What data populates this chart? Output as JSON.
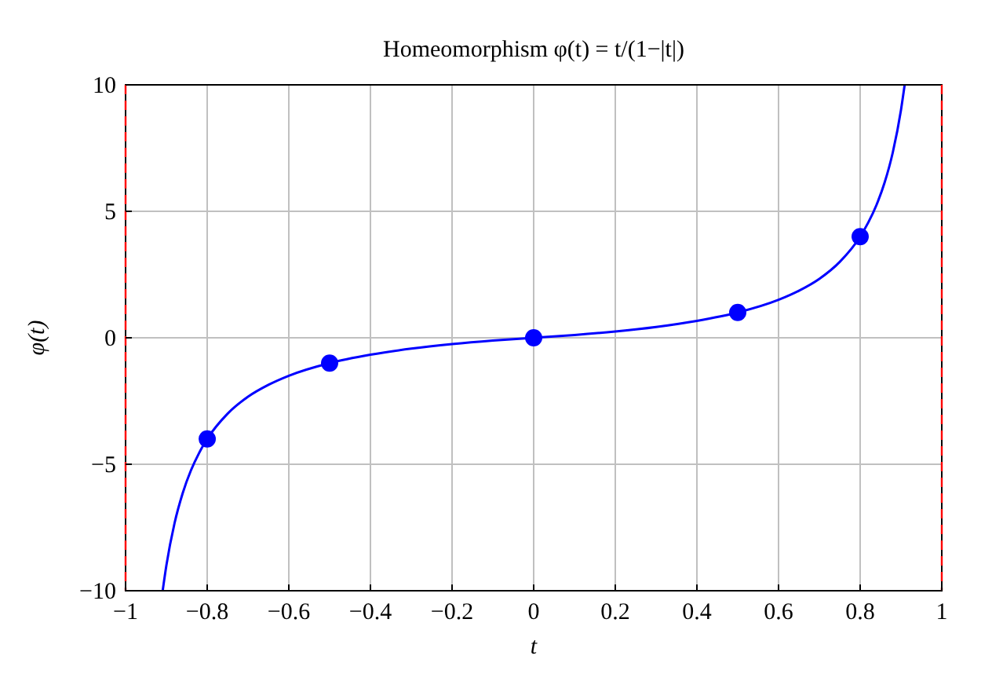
{
  "chart_data": {
    "type": "line",
    "title": "Homeomorphism φ(t) = t/(1−|t|)",
    "xlabel": "t",
    "ylabel": "φ(t)",
    "xlim": [
      -1,
      1
    ],
    "ylim": [
      -10,
      10
    ],
    "xticks": [
      {
        "value": -1,
        "label": "−1"
      },
      {
        "value": -0.8,
        "label": "−0.8"
      },
      {
        "value": -0.6,
        "label": "−0.6"
      },
      {
        "value": -0.4,
        "label": "−0.4"
      },
      {
        "value": -0.2,
        "label": "−0.2"
      },
      0,
      0.2,
      0.4,
      0.6,
      0.8,
      1
    ],
    "yticks": [
      {
        "value": -10,
        "label": "−10"
      },
      {
        "value": -5,
        "label": "−5"
      },
      0,
      5,
      10
    ],
    "grid": true,
    "series": [
      {
        "color": "#0000ff",
        "marker": "none",
        "x": [
          -0.909,
          -0.9,
          -0.88,
          -0.86,
          -0.84,
          -0.82,
          -0.8,
          -0.75,
          -0.7,
          -0.65,
          -0.6,
          -0.5,
          -0.4,
          -0.3,
          -0.2,
          -0.1,
          0,
          0.1,
          0.2,
          0.3,
          0.4,
          0.5,
          0.6,
          0.65,
          0.7,
          0.75,
          0.8,
          0.82,
          0.84,
          0.86,
          0.88,
          0.9,
          0.909
        ],
        "values": [
          -9.99,
          -9,
          -7.33,
          -6.14,
          -5.25,
          -4.56,
          -4,
          -3,
          -2.33,
          -1.86,
          -1.5,
          -1,
          -0.67,
          -0.43,
          -0.25,
          -0.11,
          0,
          0.11,
          0.25,
          0.43,
          0.67,
          1,
          1.5,
          1.86,
          2.33,
          3,
          4,
          4.56,
          5.25,
          6.14,
          7.33,
          9,
          9.99
        ]
      },
      {
        "type": "scatter",
        "color": "#0000ff",
        "marker": "circle",
        "x": [
          -0.8,
          -0.5,
          0,
          0.5,
          0.8
        ],
        "values": [
          -4,
          -1,
          0,
          1,
          4
        ]
      }
    ],
    "ref_lines": [
      {
        "axis": "x",
        "value": -1,
        "color": "#ff0000",
        "line_style": "dashed"
      },
      {
        "axis": "x",
        "value": 1,
        "color": "#ff0000",
        "line_style": "dashed"
      }
    ]
  }
}
